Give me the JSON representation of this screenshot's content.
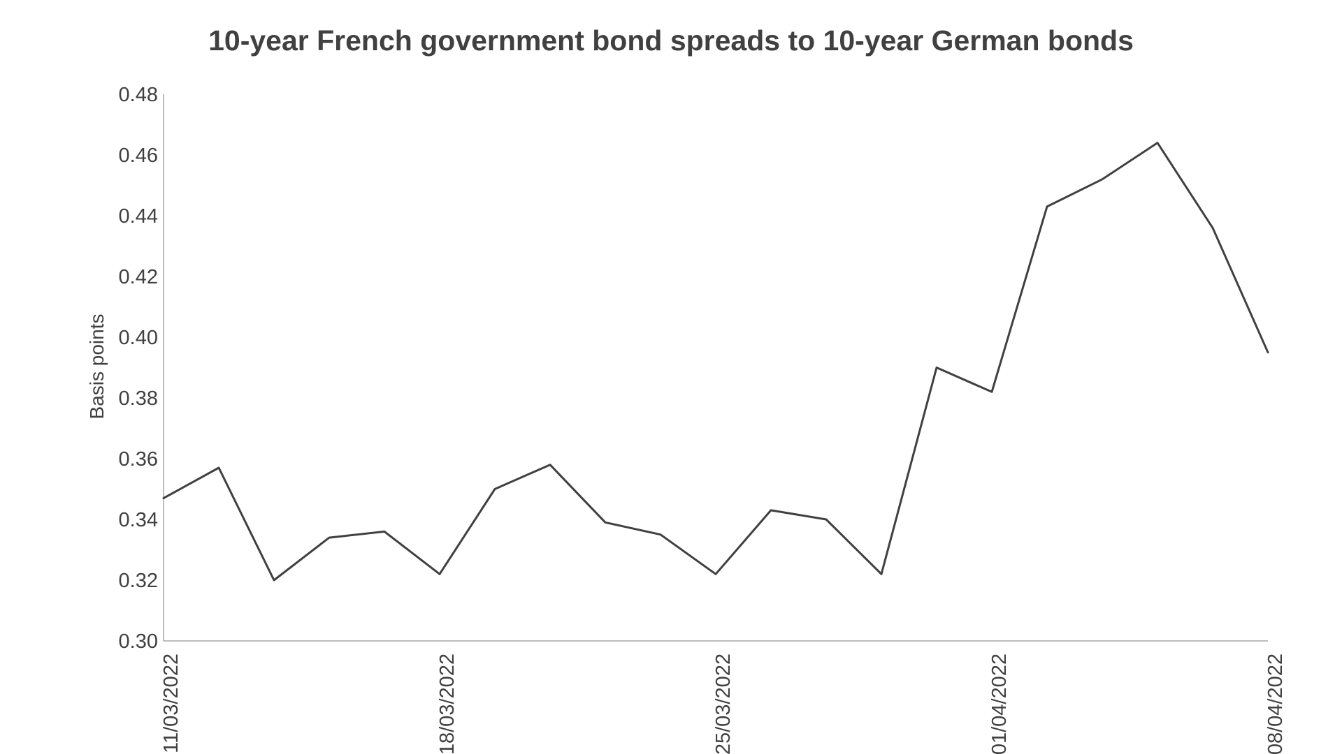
{
  "chart_data": {
    "type": "line",
    "title": "10-year French government bond spreads to 10-year German bonds",
    "xlabel": "",
    "ylabel": "Basis points",
    "ylim": [
      0.3,
      0.48
    ],
    "yticks": [
      "0.30",
      "0.32",
      "0.34",
      "0.36",
      "0.38",
      "0.40",
      "0.42",
      "0.44",
      "0.46",
      "0.48"
    ],
    "x_tick_labels": [
      "11/03/2022",
      "18/03/2022",
      "25/03/2022",
      "01/04/2022",
      "08/04/2022"
    ],
    "grid": false,
    "legend": "none",
    "line_color": "#404040",
    "axis_color": "#a6a6a6",
    "series": [
      {
        "values": [
          0.347,
          0.357,
          0.32,
          0.334,
          0.336,
          0.322,
          0.35,
          0.358,
          0.339,
          0.335,
          0.322,
          0.343,
          0.34,
          0.322,
          0.39,
          0.382,
          0.443,
          0.452,
          0.464,
          0.436,
          0.395
        ]
      }
    ]
  }
}
